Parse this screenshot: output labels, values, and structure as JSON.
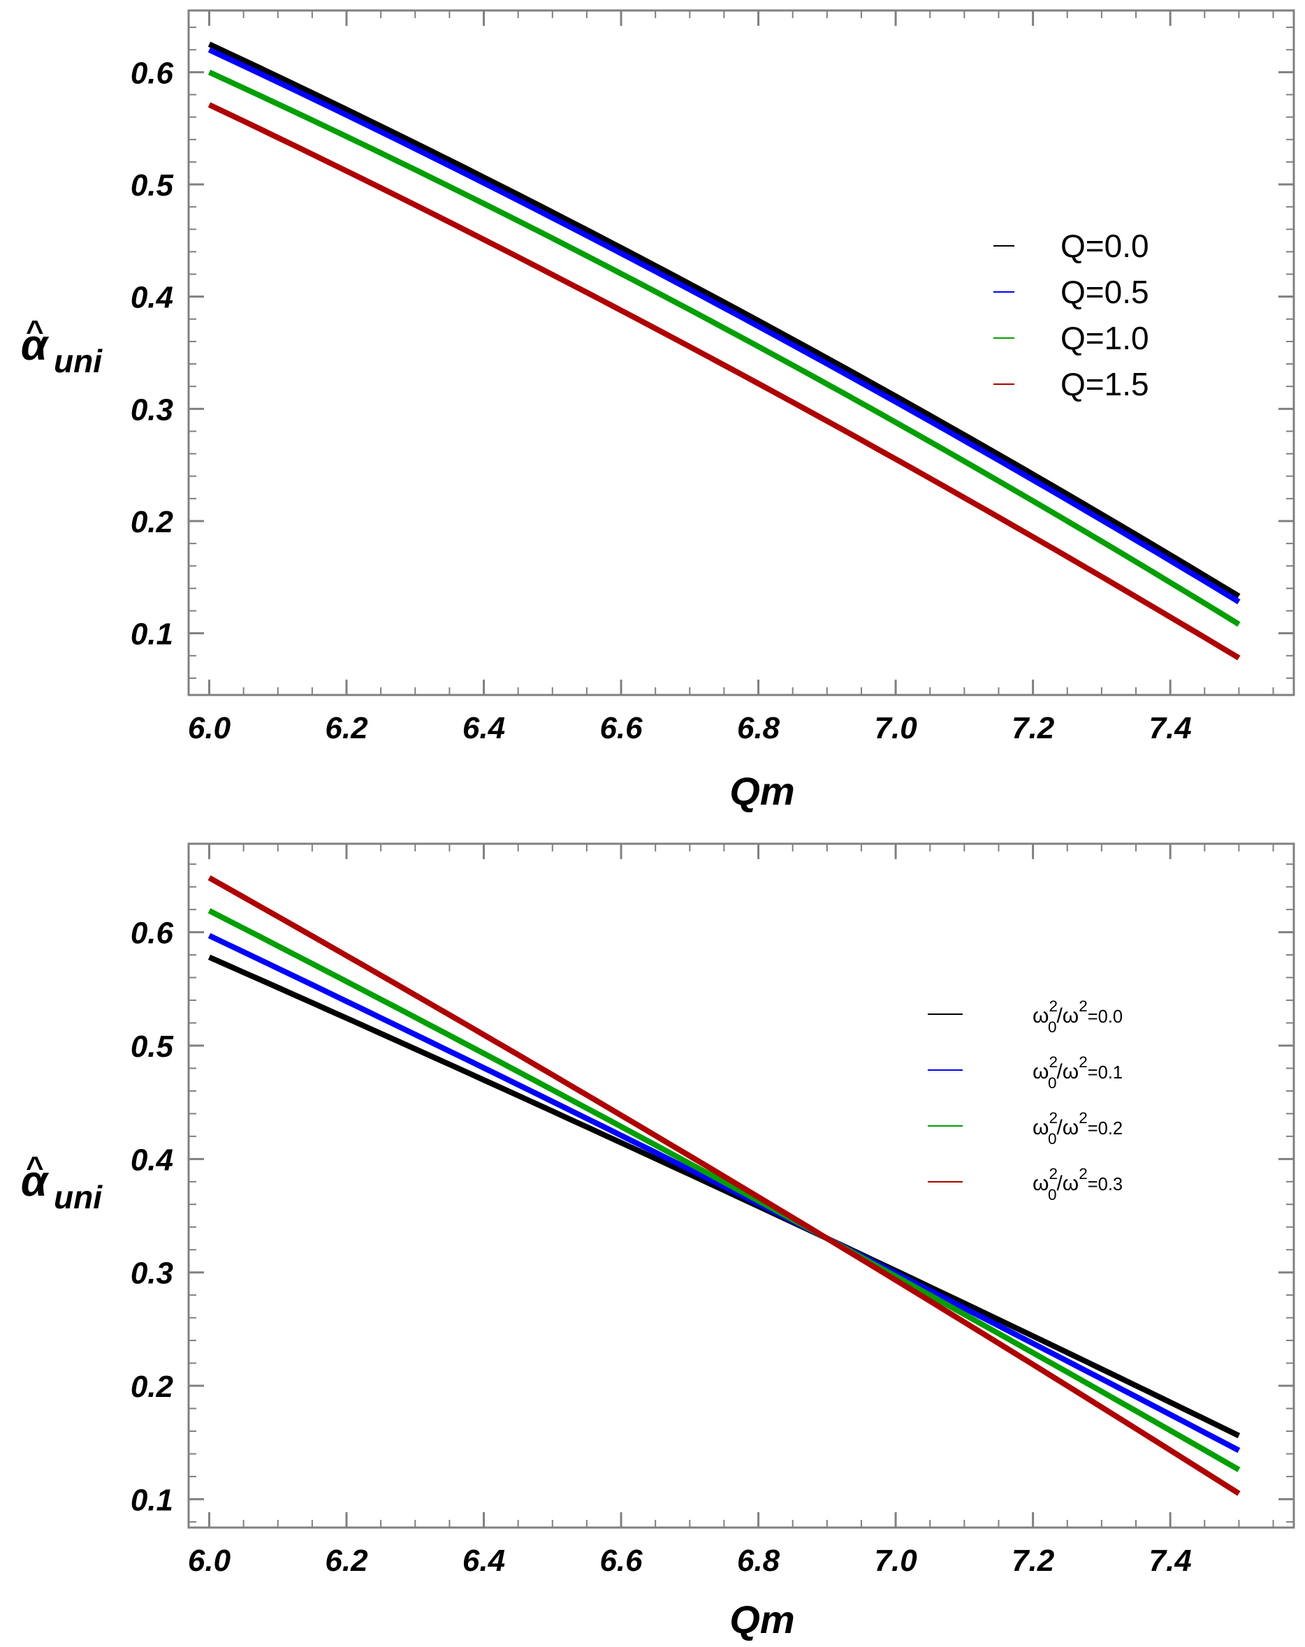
{
  "chart_data": [
    {
      "type": "line",
      "xlabel": "Qm",
      "ylabel": {
        "hat": "^",
        "symbol": "α",
        "subscript": "uni"
      },
      "xlim": [
        5.97,
        7.58
      ],
      "ylim": [
        0.045,
        0.655
      ],
      "x_ticks": [
        "6.0",
        "6.2",
        "6.4",
        "6.6",
        "6.8",
        "7.0",
        "7.2",
        "7.4"
      ],
      "y_ticks": [
        "0.1",
        "0.2",
        "0.3",
        "0.4",
        "0.5",
        "0.6"
      ],
      "legend": {
        "position": "right",
        "title": ""
      },
      "series": [
        {
          "name": "Q=0.0",
          "label": "Q=0.0",
          "color": "#000000",
          "x": [
            6.0,
            6.75,
            7.5
          ],
          "y": [
            0.625,
            0.395,
            0.133
          ]
        },
        {
          "name": "Q=0.5",
          "label": "Q=0.5",
          "color": "#0000ff",
          "x": [
            6.0,
            6.75,
            7.5
          ],
          "y": [
            0.62,
            0.39,
            0.128
          ]
        },
        {
          "name": "Q=1.0",
          "label": "Q=1.0",
          "color": "#00a000",
          "x": [
            6.0,
            6.75,
            7.5
          ],
          "y": [
            0.6,
            0.372,
            0.108
          ]
        },
        {
          "name": "Q=1.5",
          "label": "Q=1.5",
          "color": "#b00000",
          "x": [
            6.0,
            6.75,
            7.5
          ],
          "y": [
            0.571,
            0.339,
            0.078
          ]
        }
      ]
    },
    {
      "type": "line",
      "xlabel": "Qm",
      "ylabel": {
        "hat": "^",
        "symbol": "α",
        "subscript": "uni"
      },
      "xlim": [
        5.97,
        7.58
      ],
      "ylim": [
        0.075,
        0.678
      ],
      "x_ticks": [
        "6.0",
        "6.2",
        "6.4",
        "6.6",
        "6.8",
        "7.0",
        "7.2",
        "7.4"
      ],
      "y_ticks": [
        "0.1",
        "0.2",
        "0.3",
        "0.4",
        "0.5",
        "0.6"
      ],
      "legend": {
        "position": "right",
        "title": ""
      },
      "series": [
        {
          "name": "omega0^2/omega^2=0.0",
          "label": {
            "base": "ω",
            "sub": "0",
            "sup": "2",
            "mid": "/ω",
            "sup2": "2",
            "rest": "=0.0"
          },
          "color": "#000000",
          "x": [
            6.0,
            6.9,
            7.5
          ],
          "y": [
            0.578,
            0.33,
            0.156
          ]
        },
        {
          "name": "omega0^2/omega^2=0.1",
          "label": {
            "base": "ω",
            "sub": "0",
            "sup": "2",
            "mid": "/ω",
            "sup2": "2",
            "rest": "=0.1"
          },
          "color": "#0000ff",
          "x": [
            6.0,
            6.9,
            7.5
          ],
          "y": [
            0.597,
            0.33,
            0.143
          ]
        },
        {
          "name": "omega0^2/omega^2=0.2",
          "label": {
            "base": "ω",
            "sub": "0",
            "sup": "2",
            "mid": "/ω",
            "sup2": "2",
            "rest": "=0.2"
          },
          "color": "#00a000",
          "x": [
            6.0,
            6.9,
            7.5
          ],
          "y": [
            0.619,
            0.33,
            0.126
          ]
        },
        {
          "name": "omega0^2/omega^2=0.3",
          "label": {
            "base": "ω",
            "sub": "0",
            "sup": "2",
            "mid": "/ω",
            "sup2": "2",
            "rest": "=0.3"
          },
          "color": "#b00000",
          "x": [
            6.0,
            6.9,
            7.5
          ],
          "y": [
            0.648,
            0.33,
            0.105
          ]
        }
      ]
    }
  ]
}
